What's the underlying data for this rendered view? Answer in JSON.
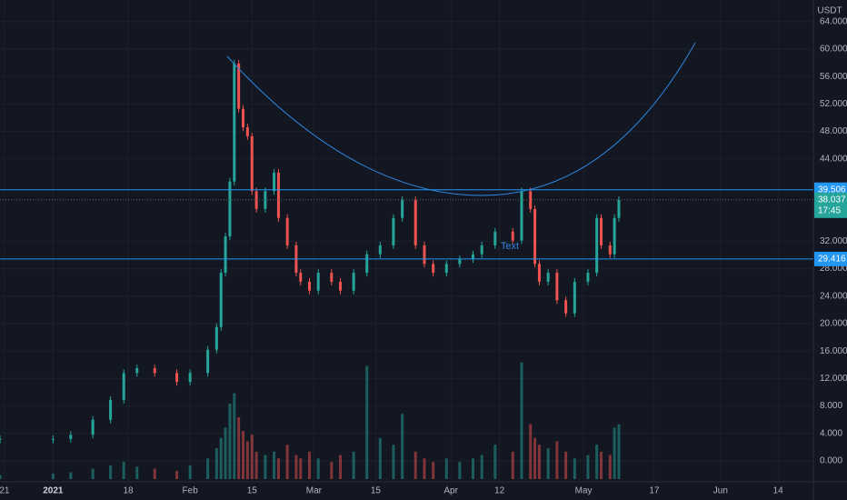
{
  "chart_data": {
    "type": "candlestick",
    "axis_unit": "USDT",
    "annotation": "Text",
    "countdown": "17:45",
    "x": [
      "2020-12-20",
      "2021-01-01",
      "2021-01-05",
      "2021-01-10",
      "2021-01-14",
      "2021-01-17",
      "2021-01-20",
      "2021-01-24",
      "2021-01-29",
      "2021-02-01",
      "2021-02-05",
      "2021-02-07",
      "2021-02-08",
      "2021-02-09",
      "2021-02-10",
      "2021-02-11",
      "2021-02-12",
      "2021-02-13",
      "2021-02-14",
      "2021-02-15",
      "2021-02-16",
      "2021-02-18",
      "2021-02-20",
      "2021-02-21",
      "2021-02-23",
      "2021-02-25",
      "2021-02-26",
      "2021-02-28",
      "2021-03-02",
      "2021-03-05",
      "2021-03-07",
      "2021-03-10",
      "2021-03-13",
      "2021-03-16",
      "2021-03-19",
      "2021-03-21",
      "2021-03-24",
      "2021-03-26",
      "2021-03-28",
      "2021-03-31",
      "2021-04-03",
      "2021-04-06",
      "2021-04-08",
      "2021-04-11",
      "2021-04-15",
      "2021-04-17",
      "2021-04-19",
      "2021-04-20",
      "2021-04-21",
      "2021-04-23",
      "2021-04-25",
      "2021-04-27",
      "2021-04-29",
      "2021-05-02",
      "2021-05-04",
      "2021-05-05",
      "2021-05-07",
      "2021-05-08",
      "2021-05-09"
    ],
    "values": [
      3.2,
      3.2,
      3.8,
      6.0,
      8.9,
      12.8,
      13.5,
      12.8,
      11.5,
      12.8,
      16.2,
      19.5,
      27.4,
      32.7,
      40.7,
      57.9,
      51.3,
      48.6,
      47.3,
      39.3,
      36.7,
      39.3,
      42.0,
      35.4,
      31.4,
      27.4,
      26.1,
      24.8,
      27.4,
      26.1,
      24.8,
      27.4,
      30.1,
      31.4,
      35.4,
      38.0,
      31.4,
      28.7,
      27.4,
      28.7,
      29.4,
      30.1,
      31.4,
      33.4,
      32.1,
      39.3,
      36.7,
      28.7,
      26.1,
      27.4,
      23.4,
      21.5,
      26.1,
      27.4,
      35.4,
      31.4,
      30.1,
      35.4,
      38.037
    ],
    "volume": [
      0.6,
      0.8,
      1.0,
      1.5,
      2.0,
      2.5,
      1.8,
      1.5,
      1.2,
      2.0,
      3.0,
      4.5,
      6.0,
      7.5,
      11.0,
      12.5,
      9.0,
      7.0,
      5.5,
      6.5,
      4.0,
      3.5,
      4.0,
      3.0,
      5.0,
      3.5,
      3.0,
      4.0,
      3.0,
      2.5,
      3.5,
      4.0,
      16.5,
      6.0,
      5.0,
      9.5,
      4.0,
      3.0,
      2.5,
      3.0,
      2.5,
      3.0,
      3.5,
      5.0,
      4.0,
      17.0,
      8.0,
      6.0,
      5.0,
      4.5,
      5.5,
      4.0,
      3.0,
      3.5,
      5.0,
      4.0,
      3.5,
      7.5,
      8.0
    ],
    "up_color": "#26a69a",
    "down_color": "#ef5350",
    "hlines": [
      39.506,
      29.416
    ],
    "hline_color": "#2196f3",
    "xlim": [
      "2020-12-20",
      "2021-06-22"
    ],
    "ylim": [
      -3.05,
      67.15
    ],
    "xticks": [
      {
        "value": "2020-12-21",
        "label": "21"
      },
      {
        "value": "2021-01-01",
        "label": "2021"
      },
      {
        "value": "2021-01-18",
        "label": "18"
      },
      {
        "value": "2021-02-01",
        "label": "Feb"
      },
      {
        "value": "2021-02-15",
        "label": "15"
      },
      {
        "value": "2021-03-01",
        "label": "Mar"
      },
      {
        "value": "2021-03-15",
        "label": "15"
      },
      {
        "value": "2021-04-01",
        "label": "Apr"
      },
      {
        "value": "2021-04-12",
        "label": "12"
      },
      {
        "value": "2021-05-01",
        "label": "May"
      },
      {
        "value": "2021-05-17",
        "label": "17"
      },
      {
        "value": "2021-06-01",
        "label": "Jun"
      },
      {
        "value": "2021-06-14",
        "label": "14"
      }
    ],
    "yticks": [
      {
        "value": 0,
        "label": "0.000"
      },
      {
        "value": 4,
        "label": "4.000"
      },
      {
        "value": 8,
        "label": "8.000"
      },
      {
        "value": 12,
        "label": "12.000"
      },
      {
        "value": 16,
        "label": "16.000"
      },
      {
        "value": 20,
        "label": "20.000"
      },
      {
        "value": 24,
        "label": "24.000"
      },
      {
        "value": 28,
        "label": "28.000"
      },
      {
        "value": 32,
        "label": "32.000"
      },
      {
        "value": 44,
        "label": "44.000"
      },
      {
        "value": 48,
        "label": "48.000"
      },
      {
        "value": 52,
        "label": "52.000"
      },
      {
        "value": 56,
        "label": "56.000"
      },
      {
        "value": 60,
        "label": "60.000"
      },
      {
        "value": 64,
        "label": "64.000"
      }
    ],
    "grid": true
  }
}
